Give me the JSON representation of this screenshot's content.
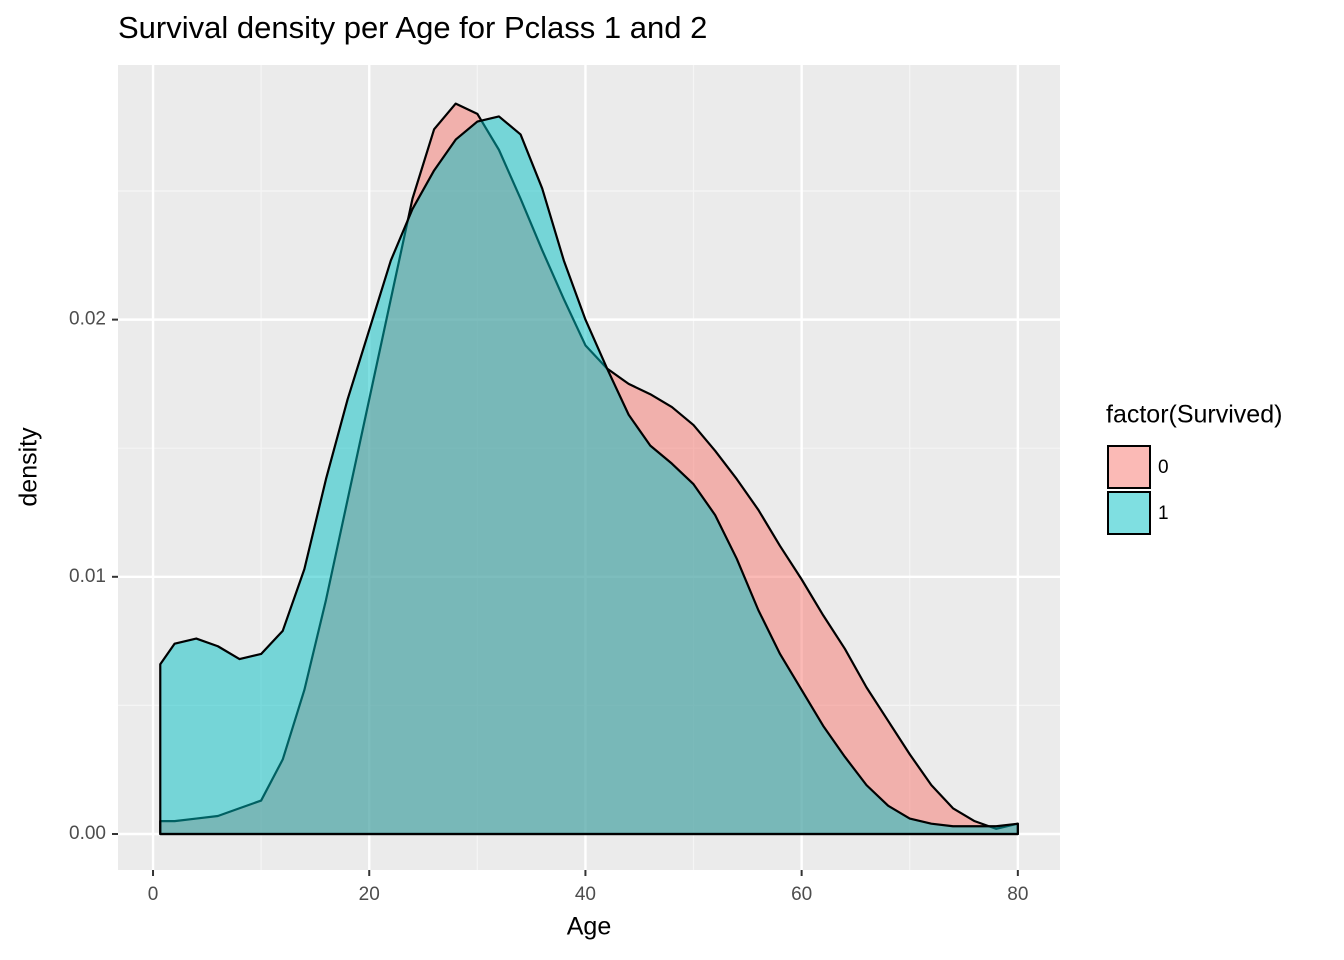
{
  "chart_data": {
    "type": "density",
    "title": "Survival density per Age for Pclass 1 and 2",
    "x_label": "Age",
    "y_label": "density",
    "legend_title": "factor(Survived)",
    "legend_position": "right",
    "grid": true,
    "x": [
      0.67,
      2,
      4,
      6,
      8,
      10,
      12,
      14,
      16,
      18,
      20,
      22,
      24,
      26,
      28,
      30,
      32,
      34,
      36,
      38,
      40,
      42,
      44,
      46,
      48,
      50,
      52,
      54,
      56,
      58,
      60,
      62,
      64,
      66,
      68,
      70,
      72,
      74,
      76,
      78,
      80
    ],
    "series": [
      {
        "name": "0",
        "color": "#F8766D",
        "values": [
          0.0005,
          0.0005,
          0.0006,
          0.0007,
          0.001,
          0.0013,
          0.0029,
          0.0056,
          0.0091,
          0.013,
          0.0169,
          0.0208,
          0.0247,
          0.0274,
          0.0284,
          0.028,
          0.0266,
          0.0247,
          0.0227,
          0.0208,
          0.019,
          0.0181,
          0.0175,
          0.0171,
          0.0166,
          0.0159,
          0.0149,
          0.0138,
          0.0126,
          0.0112,
          0.0099,
          0.0085,
          0.0072,
          0.0057,
          0.0044,
          0.0031,
          0.0019,
          0.001,
          0.0005,
          0.0002,
          0.0004
        ]
      },
      {
        "name": "1",
        "color": "#00BFC4",
        "values": [
          0.0066,
          0.0074,
          0.0076,
          0.0073,
          0.0068,
          0.007,
          0.0079,
          0.0103,
          0.0138,
          0.0169,
          0.0196,
          0.0223,
          0.0243,
          0.0258,
          0.027,
          0.0277,
          0.0279,
          0.0272,
          0.0251,
          0.0223,
          0.02,
          0.0181,
          0.0163,
          0.0151,
          0.0144,
          0.0136,
          0.0124,
          0.0107,
          0.0087,
          0.007,
          0.0056,
          0.0042,
          0.003,
          0.0019,
          0.0011,
          0.0006,
          0.0004,
          0.0003,
          0.0003,
          0.0003,
          0.0004
        ]
      }
    ],
    "fill_opacity": 0.5,
    "xlim": [
      -3.24,
      83.9
    ],
    "ylim": [
      -0.0014,
      0.0299
    ],
    "xticks": [
      0,
      20,
      40,
      60,
      80
    ],
    "xminor": [
      10,
      30,
      50,
      70
    ],
    "yticks": [
      {
        "value": 0,
        "label": "0.00"
      },
      {
        "value": 0.01,
        "label": "0.01"
      },
      {
        "value": 0.02,
        "label": "0.02"
      }
    ],
    "yminor": [
      0.005,
      0.015,
      0.025
    ]
  }
}
